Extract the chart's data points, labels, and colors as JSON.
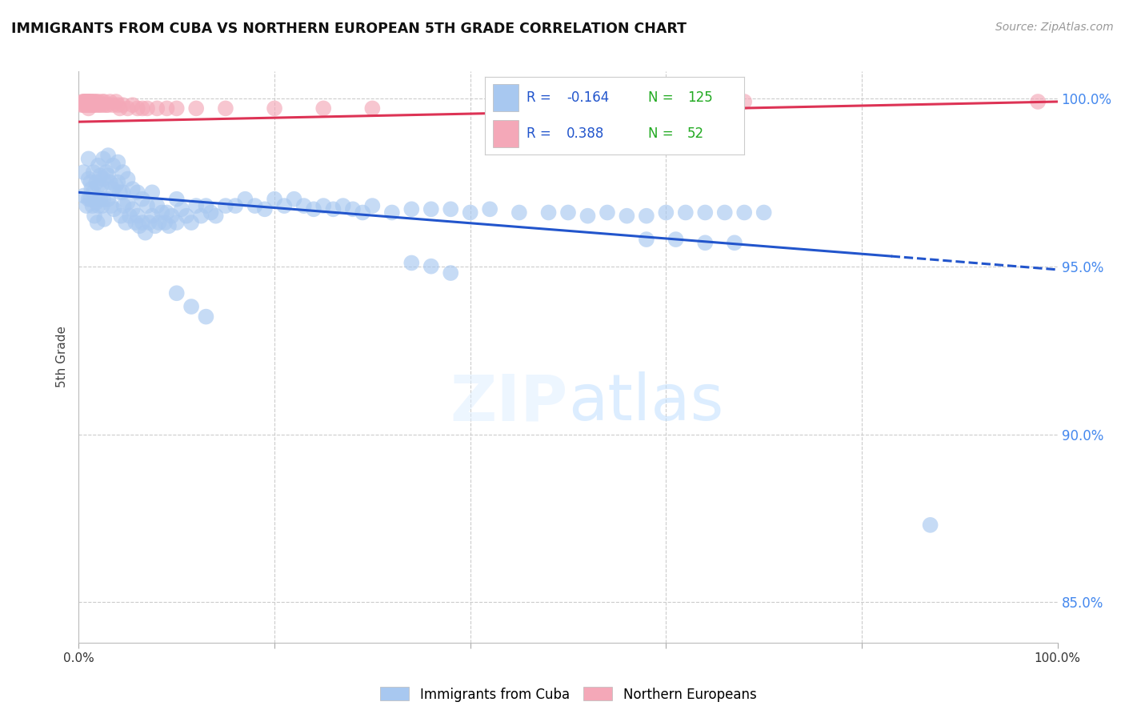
{
  "title": "IMMIGRANTS FROM CUBA VS NORTHERN EUROPEAN 5TH GRADE CORRELATION CHART",
  "source": "Source: ZipAtlas.com",
  "ylabel": "5th Grade",
  "xlim": [
    0.0,
    1.0
  ],
  "ylim": [
    0.838,
    1.008
  ],
  "yticks": [
    0.85,
    0.9,
    0.95,
    1.0
  ],
  "ytick_labels": [
    "85.0%",
    "90.0%",
    "95.0%",
    "100.0%"
  ],
  "blue_R": -0.164,
  "blue_N": 125,
  "pink_R": 0.388,
  "pink_N": 52,
  "blue_color": "#a8c8f0",
  "pink_color": "#f4a8b8",
  "trendline_blue": "#2255cc",
  "trendline_pink": "#dd3355",
  "legend_R_color": "#2255cc",
  "legend_N_color": "#22aa22",
  "blue_scatter_x": [
    0.005,
    0.005,
    0.008,
    0.01,
    0.01,
    0.01,
    0.012,
    0.012,
    0.013,
    0.014,
    0.015,
    0.015,
    0.016,
    0.018,
    0.018,
    0.019,
    0.02,
    0.02,
    0.02,
    0.022,
    0.022,
    0.023,
    0.024,
    0.025,
    0.025,
    0.025,
    0.026,
    0.028,
    0.03,
    0.03,
    0.03,
    0.032,
    0.033,
    0.035,
    0.035,
    0.036,
    0.038,
    0.04,
    0.04,
    0.042,
    0.043,
    0.045,
    0.045,
    0.046,
    0.048,
    0.05,
    0.05,
    0.052,
    0.055,
    0.055,
    0.058,
    0.06,
    0.06,
    0.062,
    0.065,
    0.065,
    0.068,
    0.07,
    0.072,
    0.075,
    0.075,
    0.078,
    0.08,
    0.082,
    0.085,
    0.088,
    0.09,
    0.092,
    0.095,
    0.1,
    0.1,
    0.105,
    0.11,
    0.115,
    0.12,
    0.125,
    0.13,
    0.135,
    0.14,
    0.15,
    0.16,
    0.17,
    0.18,
    0.19,
    0.2,
    0.21,
    0.22,
    0.23,
    0.24,
    0.25,
    0.26,
    0.27,
    0.28,
    0.29,
    0.3,
    0.32,
    0.34,
    0.36,
    0.38,
    0.4,
    0.42,
    0.45,
    0.48,
    0.5,
    0.52,
    0.54,
    0.56,
    0.58,
    0.6,
    0.62,
    0.64,
    0.66,
    0.68,
    0.7,
    0.58,
    0.61,
    0.64,
    0.67,
    0.34,
    0.36,
    0.38,
    0.1,
    0.115,
    0.13,
    0.87
  ],
  "blue_scatter_y": [
    0.978,
    0.971,
    0.968,
    0.982,
    0.976,
    0.97,
    0.975,
    0.97,
    0.973,
    0.968,
    0.978,
    0.972,
    0.965,
    0.975,
    0.969,
    0.963,
    0.98,
    0.974,
    0.968,
    0.977,
    0.97,
    0.974,
    0.968,
    0.982,
    0.976,
    0.97,
    0.964,
    0.978,
    0.983,
    0.977,
    0.97,
    0.975,
    0.968,
    0.98,
    0.973,
    0.967,
    0.974,
    0.981,
    0.975,
    0.972,
    0.965,
    0.978,
    0.972,
    0.968,
    0.963,
    0.976,
    0.969,
    0.965,
    0.973,
    0.967,
    0.963,
    0.972,
    0.965,
    0.962,
    0.97,
    0.963,
    0.96,
    0.968,
    0.963,
    0.972,
    0.965,
    0.962,
    0.968,
    0.963,
    0.966,
    0.963,
    0.966,
    0.962,
    0.965,
    0.97,
    0.963,
    0.967,
    0.965,
    0.963,
    0.968,
    0.965,
    0.968,
    0.966,
    0.965,
    0.968,
    0.968,
    0.97,
    0.968,
    0.967,
    0.97,
    0.968,
    0.97,
    0.968,
    0.967,
    0.968,
    0.967,
    0.968,
    0.967,
    0.966,
    0.968,
    0.966,
    0.967,
    0.967,
    0.967,
    0.966,
    0.967,
    0.966,
    0.966,
    0.966,
    0.965,
    0.966,
    0.965,
    0.965,
    0.966,
    0.966,
    0.966,
    0.966,
    0.966,
    0.966,
    0.958,
    0.958,
    0.957,
    0.957,
    0.951,
    0.95,
    0.948,
    0.942,
    0.938,
    0.935,
    0.873
  ],
  "pink_scatter_x": [
    0.003,
    0.004,
    0.005,
    0.005,
    0.006,
    0.006,
    0.007,
    0.008,
    0.008,
    0.009,
    0.01,
    0.01,
    0.01,
    0.011,
    0.012,
    0.012,
    0.013,
    0.014,
    0.015,
    0.015,
    0.016,
    0.017,
    0.018,
    0.02,
    0.02,
    0.022,
    0.024,
    0.025,
    0.026,
    0.028,
    0.03,
    0.032,
    0.035,
    0.038,
    0.04,
    0.042,
    0.045,
    0.05,
    0.055,
    0.06,
    0.065,
    0.07,
    0.08,
    0.09,
    0.1,
    0.12,
    0.15,
    0.2,
    0.25,
    0.3,
    0.68,
    0.98
  ],
  "pink_scatter_y": [
    0.998,
    0.999,
    0.998,
    0.999,
    0.999,
    0.998,
    0.999,
    0.999,
    0.998,
    0.999,
    0.999,
    0.998,
    0.997,
    0.999,
    0.999,
    0.998,
    0.999,
    0.998,
    0.999,
    0.998,
    0.999,
    0.998,
    0.999,
    0.999,
    0.998,
    0.998,
    0.999,
    0.998,
    0.999,
    0.998,
    0.998,
    0.999,
    0.998,
    0.999,
    0.998,
    0.997,
    0.998,
    0.997,
    0.998,
    0.997,
    0.997,
    0.997,
    0.997,
    0.997,
    0.997,
    0.997,
    0.997,
    0.997,
    0.997,
    0.997,
    0.999,
    0.999
  ],
  "trendline_blue_x0": 0.0,
  "trendline_blue_y0": 0.972,
  "trendline_blue_x1": 0.83,
  "trendline_blue_y1": 0.953,
  "trendline_blue_dash_x1": 1.0,
  "trendline_blue_dash_y1": 0.949,
  "trendline_pink_x0": 0.0,
  "trendline_pink_y0": 0.993,
  "trendline_pink_x1": 1.0,
  "trendline_pink_y1": 0.999
}
